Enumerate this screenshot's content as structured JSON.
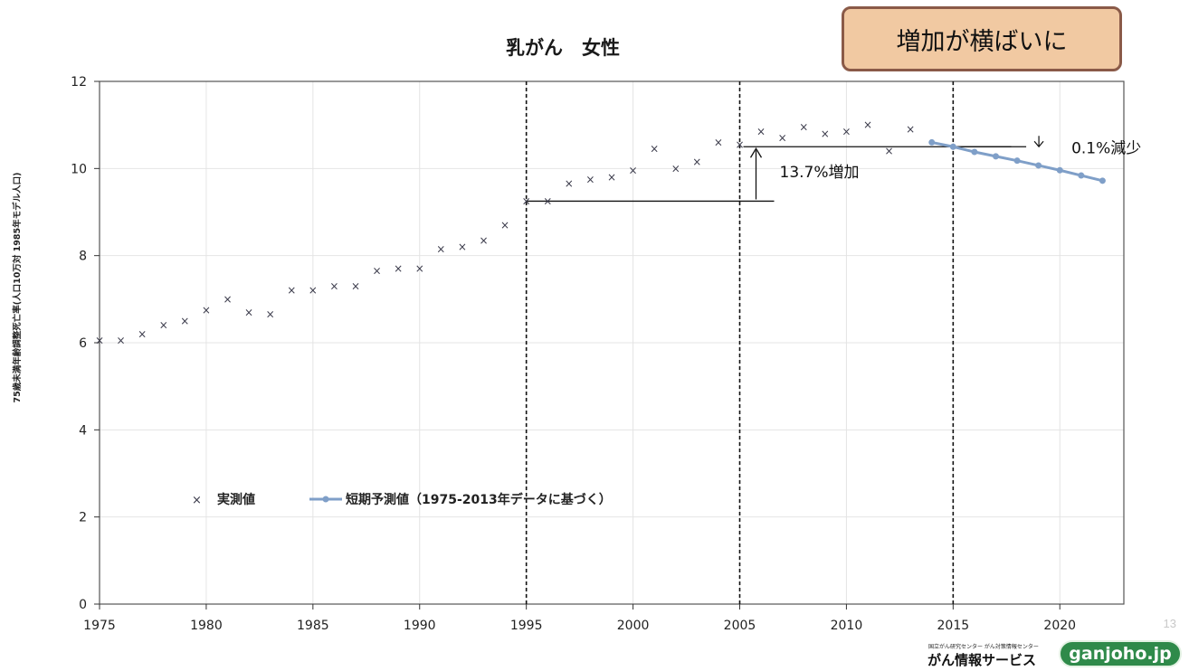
{
  "chart_data": {
    "type": "scatter",
    "title": "乳がん　女性",
    "ylabel": "75歳未満年齢調整死亡率(人口10万対 1985年モデル人口)",
    "xlabel": "",
    "xlim": [
      1975,
      2023
    ],
    "ylim": [
      0,
      12
    ],
    "x_ticks": [
      "1975",
      "1980",
      "1985",
      "1990",
      "1995",
      "2000",
      "2005",
      "2010",
      "2015",
      "2020"
    ],
    "y_ticks": [
      "0",
      "2",
      "4",
      "6",
      "8",
      "10",
      "12"
    ],
    "grid": true,
    "legend_position": "lower-left",
    "series": [
      {
        "name": "実測値",
        "marker": "x",
        "color": "#3a3a4a",
        "points": [
          [
            1975,
            6.05
          ],
          [
            1976,
            6.05
          ],
          [
            1977,
            6.2
          ],
          [
            1978,
            6.4
          ],
          [
            1979,
            6.5
          ],
          [
            1980,
            6.75
          ],
          [
            1981,
            7.0
          ],
          [
            1982,
            6.7
          ],
          [
            1983,
            6.65
          ],
          [
            1984,
            7.2
          ],
          [
            1985,
            7.2
          ],
          [
            1986,
            7.3
          ],
          [
            1987,
            7.3
          ],
          [
            1988,
            7.65
          ],
          [
            1989,
            7.7
          ],
          [
            1990,
            7.7
          ],
          [
            1991,
            8.15
          ],
          [
            1992,
            8.2
          ],
          [
            1993,
            8.35
          ],
          [
            1994,
            8.7
          ],
          [
            1995,
            9.25
          ],
          [
            1996,
            9.25
          ],
          [
            1997,
            9.65
          ],
          [
            1998,
            9.75
          ],
          [
            1999,
            9.8
          ],
          [
            2000,
            9.95
          ],
          [
            2001,
            10.45
          ],
          [
            2002,
            10.0
          ],
          [
            2003,
            10.15
          ],
          [
            2004,
            10.6
          ],
          [
            2005,
            10.55
          ],
          [
            2006,
            10.85
          ],
          [
            2007,
            10.7
          ],
          [
            2008,
            10.95
          ],
          [
            2009,
            10.8
          ],
          [
            2010,
            10.85
          ],
          [
            2011,
            11.0
          ],
          [
            2012,
            10.4
          ],
          [
            2013,
            10.9
          ]
        ]
      },
      {
        "name": "短期予測値（1975-2013年データに基づく）",
        "marker": "o-line",
        "color": "#7f9fc8",
        "points": [
          [
            2014,
            10.6
          ],
          [
            2015,
            10.5
          ],
          [
            2016,
            10.38
          ],
          [
            2017,
            10.28
          ],
          [
            2018,
            10.18
          ],
          [
            2019,
            10.07
          ],
          [
            2020,
            9.96
          ],
          [
            2021,
            9.84
          ],
          [
            2022,
            9.72
          ]
        ]
      }
    ],
    "vertical_lines": [
      1995,
      2005,
      2015
    ],
    "annotations": [
      {
        "text": "13.7%増加",
        "from": [
          1995,
          9.25
        ],
        "to": [
          2005,
          10.5
        ]
      },
      {
        "text": "0.1%減少",
        "from": [
          2014,
          10.5
        ],
        "to": [
          2018,
          10.5
        ]
      }
    ]
  },
  "callout": {
    "text": "増加が横ばいに"
  },
  "page_number": "13",
  "brand": {
    "org_line": "国立がん研究センター がん対策情報センター",
    "name": "がん情報サービス",
    "url": "ganjoho.jp"
  }
}
